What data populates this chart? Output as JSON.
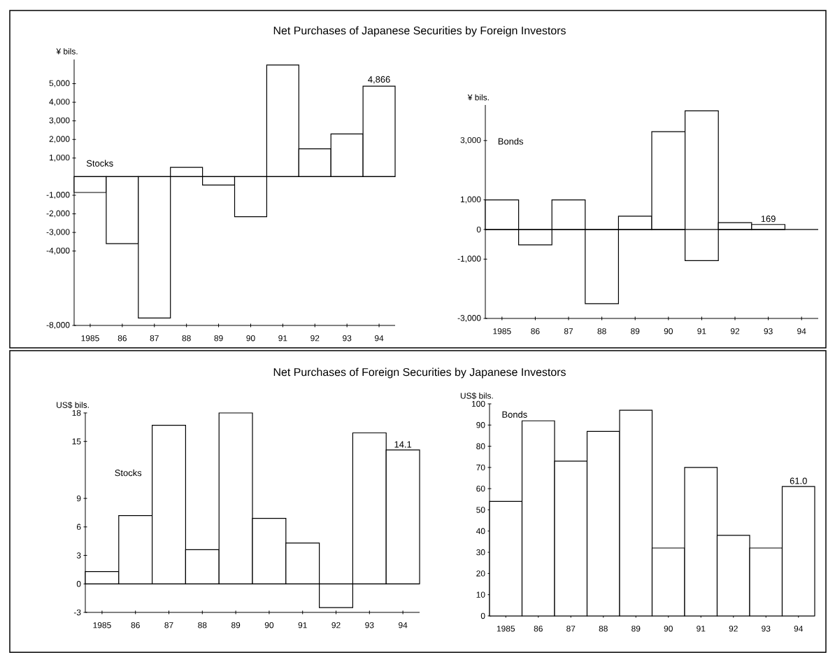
{
  "chart_data": [
    {
      "type": "bar",
      "title": "Net Purchases of Japanese Securities by Foreign Investors",
      "subtitle": "Stocks",
      "ylabel": "¥ bils.",
      "categories": [
        "1985",
        "86",
        "87",
        "88",
        "89",
        "90",
        "91",
        "92",
        "93",
        "94"
      ],
      "values": [
        -850,
        -3600,
        -7600,
        500,
        -450,
        -2150,
        6000,
        1500,
        2300,
        4866
      ],
      "color": "#ffffff",
      "ylim": [
        -8000,
        6300
      ],
      "yticks": [
        {
          "value": -8000,
          "label": "-8,000"
        },
        {
          "value": -4000,
          "label": "-4,000"
        },
        {
          "value": -3000,
          "label": "-3,000"
        },
        {
          "value": -2000,
          "label": "-2,000"
        },
        {
          "value": -1000,
          "label": "-1,000"
        },
        {
          "value": 1000,
          "label": "1,000"
        },
        {
          "value": 2000,
          "label": "2,000"
        },
        {
          "value": 3000,
          "label": "3,000"
        },
        {
          "value": 4000,
          "label": "4,000"
        },
        {
          "value": 5000,
          "label": "5,000"
        }
      ],
      "value_labels": [
        null,
        null,
        null,
        null,
        null,
        null,
        null,
        null,
        null,
        "4,866"
      ]
    },
    {
      "type": "bar",
      "subtitle": "Bonds",
      "ylabel": "¥ bils.",
      "categories": [
        "1985",
        "86",
        "87",
        "88",
        "89",
        "90",
        "91",
        "92",
        "93",
        "94"
      ],
      "values": [
        1000,
        -520,
        1000,
        -2500,
        450,
        3300,
        5050,
        230,
        169,
        null
      ],
      "base": [
        0,
        0,
        0,
        0,
        0,
        0,
        -1050,
        0,
        0,
        null
      ],
      "color": "#ffffff",
      "ylim": [
        -3000,
        4200
      ],
      "yticks": [
        {
          "value": -3000,
          "label": "-3,000"
        },
        {
          "value": -1000,
          "label": "-1,000"
        },
        0,
        {
          "value": 1000,
          "label": "1,000"
        },
        {
          "value": 3000,
          "label": "3,000"
        }
      ],
      "value_labels": [
        null,
        null,
        null,
        null,
        null,
        null,
        null,
        null,
        "169",
        null
      ]
    },
    {
      "type": "bar",
      "title": "Net Purchases of Foreign Securities by Japanese Investors",
      "subtitle": "Stocks",
      "ylabel": "US$ bils.",
      "categories": [
        "1985",
        "86",
        "87",
        "88",
        "89",
        "90",
        "91",
        "92",
        "93",
        "94"
      ],
      "values": [
        1.3,
        7.2,
        16.7,
        3.6,
        18.0,
        6.9,
        4.3,
        -2.5,
        15.9,
        14.1
      ],
      "color": "#ffffff",
      "ylim": [
        -3,
        18
      ],
      "yticks": [
        -3,
        0,
        3,
        6,
        9,
        15,
        18
      ],
      "value_labels": [
        null,
        null,
        null,
        null,
        null,
        null,
        null,
        null,
        null,
        "14.1"
      ]
    },
    {
      "type": "bar",
      "subtitle": "Bonds",
      "ylabel": "US$ bils.",
      "categories": [
        "1985",
        "86",
        "87",
        "88",
        "89",
        "90",
        "91",
        "92",
        "93",
        "94"
      ],
      "values": [
        54,
        92,
        73,
        87,
        97,
        32,
        70,
        38,
        32,
        61.0
      ],
      "color": "#ffffff",
      "ylim": [
        0,
        100
      ],
      "yticks": [
        0,
        10,
        20,
        30,
        40,
        50,
        60,
        70,
        80,
        90,
        100
      ],
      "value_labels": [
        null,
        null,
        null,
        null,
        null,
        null,
        null,
        null,
        null,
        "61.0"
      ]
    }
  ]
}
